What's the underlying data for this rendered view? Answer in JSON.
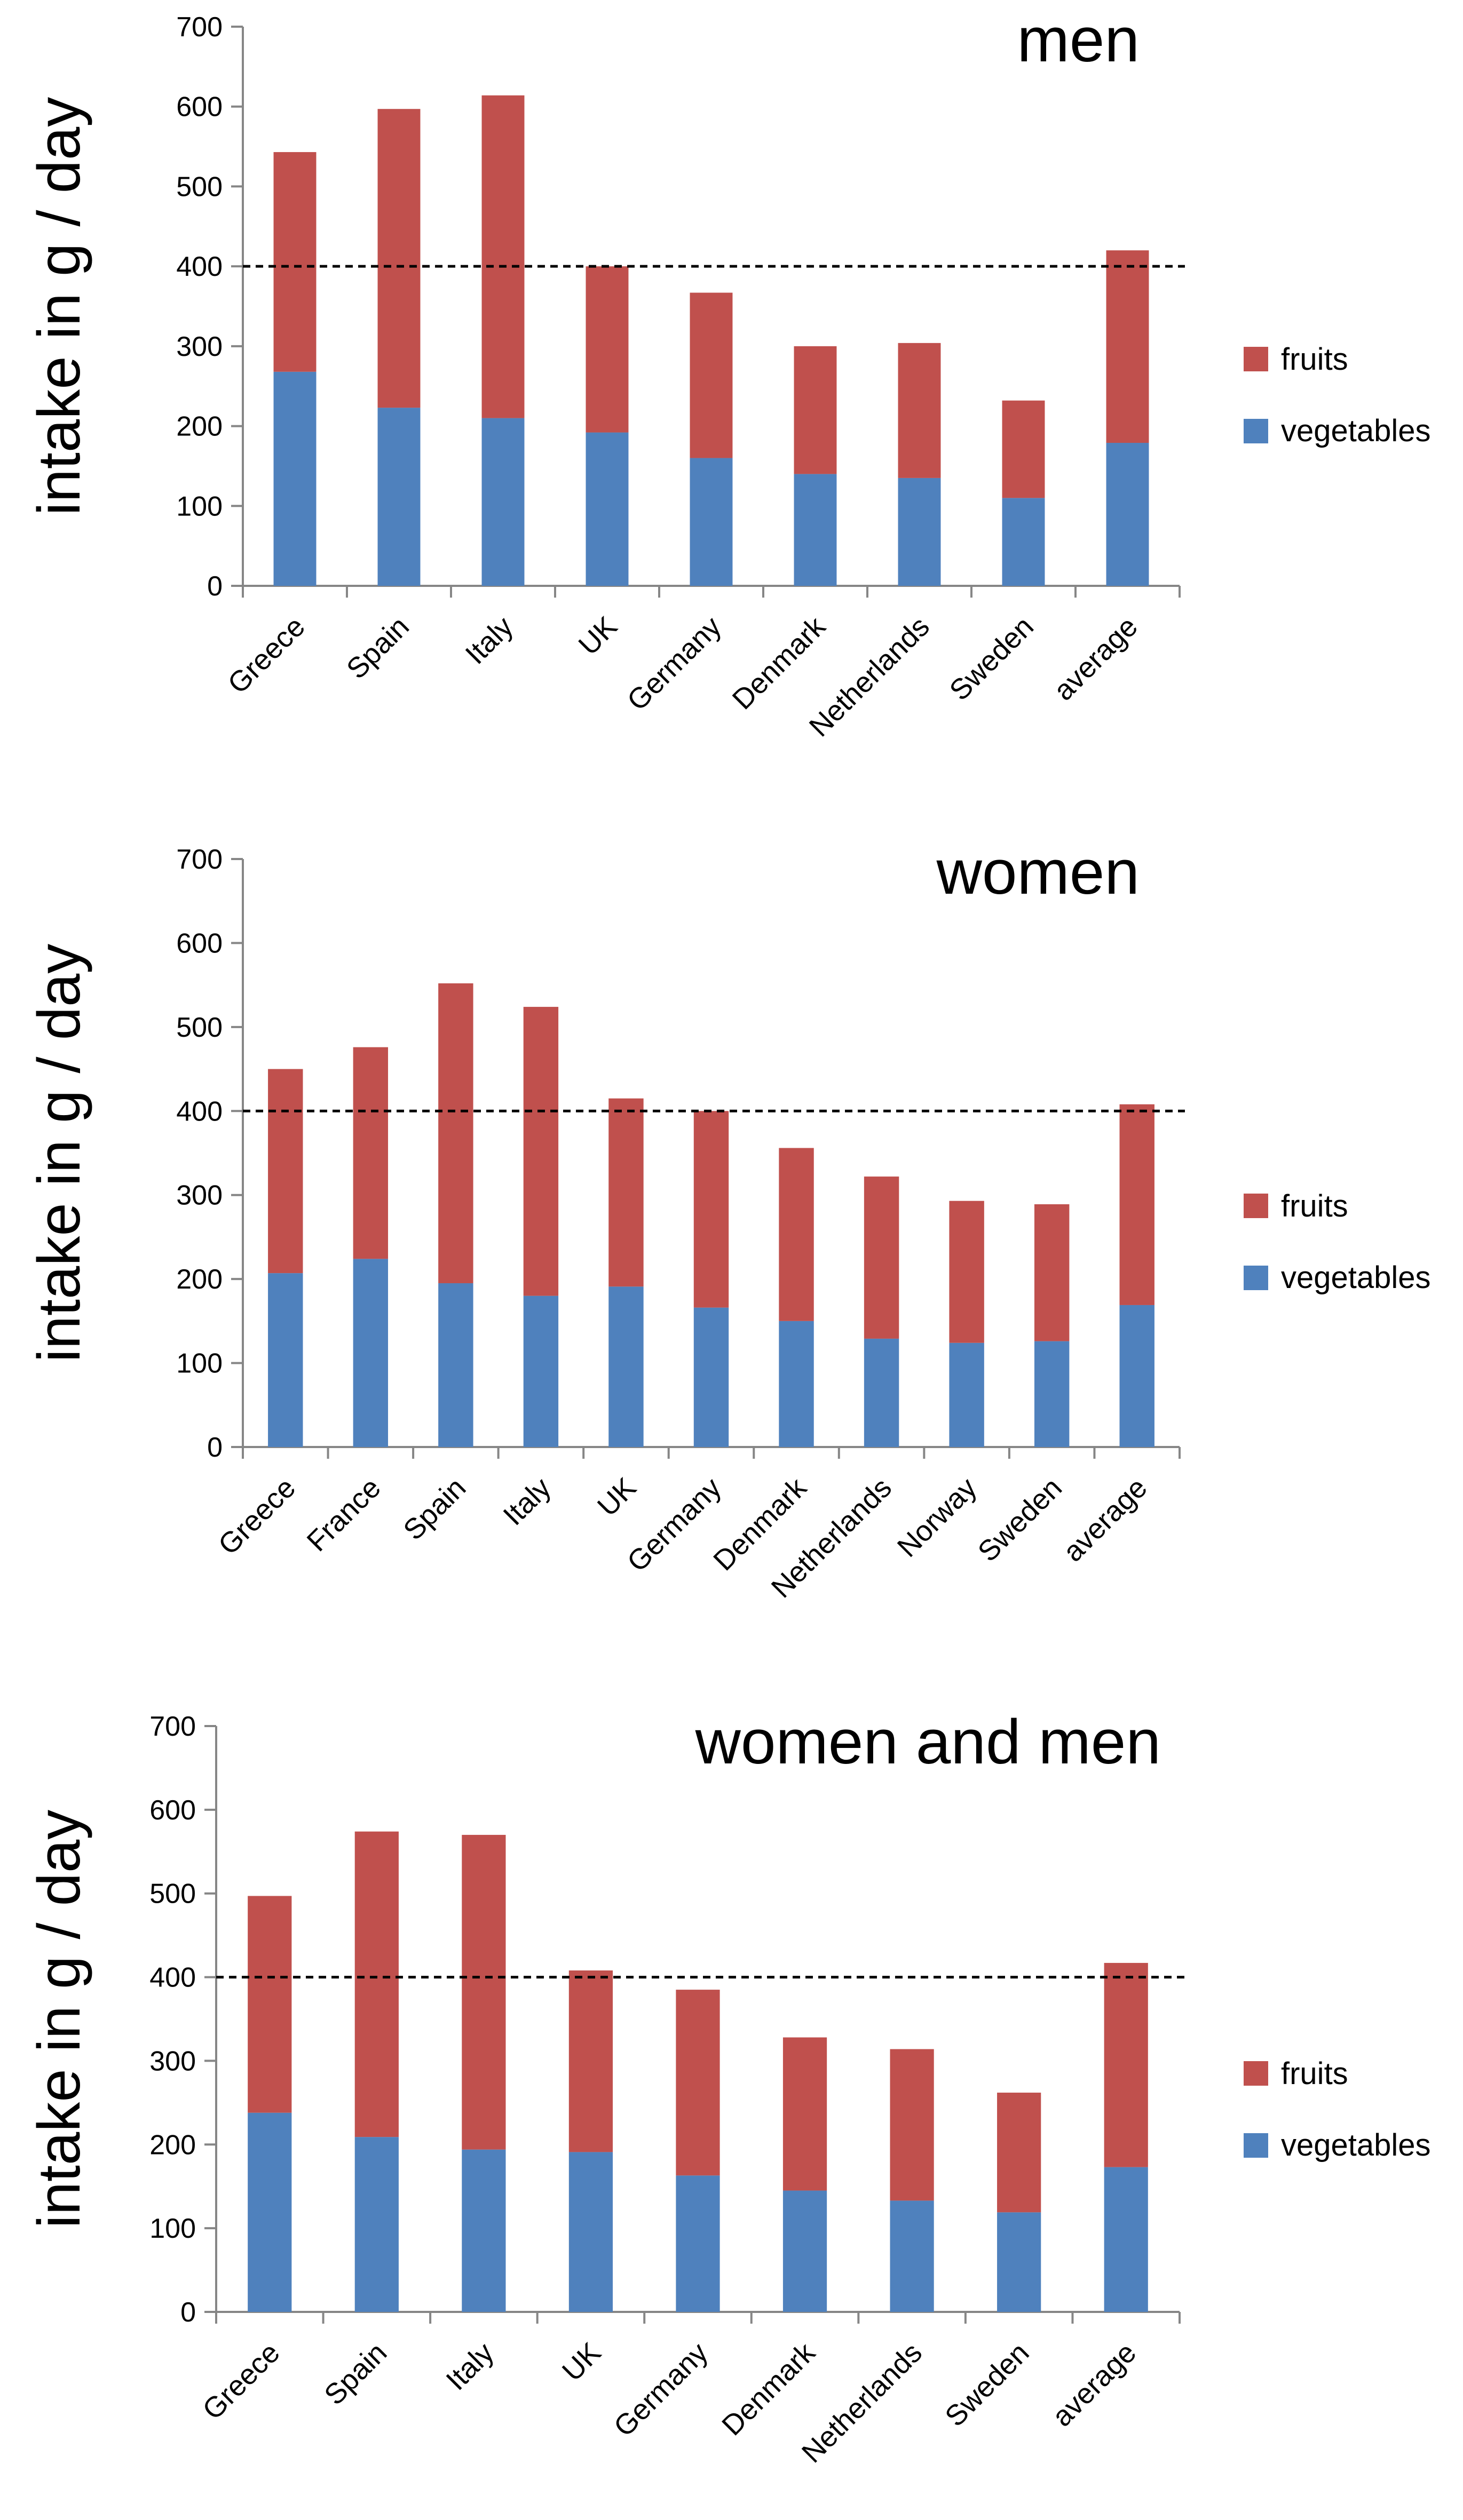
{
  "colors": {
    "fruits": "#c0504d",
    "vegetables": "#4f81bd",
    "axis": "#868686",
    "reference": "#000000"
  },
  "chart_data": [
    {
      "type": "bar",
      "stacked": true,
      "title": "men",
      "ylabel": "intake in g / day",
      "xlabel": "",
      "ylim": [
        0,
        700
      ],
      "yticks": [
        0,
        100,
        200,
        300,
        400,
        500,
        600,
        700
      ],
      "reference_line": 400,
      "legend_position": "right",
      "categories": [
        "Greece",
        "Spain",
        "Italy",
        "UK",
        "Germany",
        "Denmark",
        "Netherlands",
        "Sweden",
        "average"
      ],
      "series": [
        {
          "name": "vegetables",
          "values": [
            268,
            223,
            210,
            192,
            160,
            140,
            135,
            110,
            179
          ]
        },
        {
          "name": "fruits",
          "values": [
            275,
            374,
            404,
            208,
            207,
            160,
            169,
            122,
            241
          ]
        }
      ]
    },
    {
      "type": "bar",
      "stacked": true,
      "title": "women",
      "ylabel": "intake in g / day",
      "xlabel": "",
      "ylim": [
        0,
        700
      ],
      "yticks": [
        0,
        100,
        200,
        300,
        400,
        500,
        600,
        700
      ],
      "reference_line": 400,
      "legend_position": "right",
      "categories": [
        "Greece",
        "France",
        "Spain",
        "Italy",
        "UK",
        "Germany",
        "Denmark",
        "Netherlands",
        "Norway",
        "Sweden",
        "average"
      ],
      "series": [
        {
          "name": "vegetables",
          "values": [
            207,
            224,
            195,
            180,
            191,
            166,
            150,
            129,
            124,
            126,
            169
          ]
        },
        {
          "name": "fruits",
          "values": [
            243,
            252,
            357,
            344,
            224,
            234,
            206,
            193,
            169,
            163,
            239
          ]
        }
      ]
    },
    {
      "type": "bar",
      "stacked": true,
      "title": "women and men",
      "ylabel": "intake in g / day",
      "xlabel": "",
      "ylim": [
        0,
        700
      ],
      "yticks": [
        0,
        100,
        200,
        300,
        400,
        500,
        600,
        700
      ],
      "reference_line": 400,
      "legend_position": "right",
      "categories": [
        "Greece",
        "Spain",
        "Italy",
        "UK",
        "Germany",
        "Denmark",
        "Netherlands",
        "Sweden",
        "average"
      ],
      "series": [
        {
          "name": "vegetables",
          "values": [
            238,
            209,
            194,
            191,
            163,
            145,
            133,
            119,
            173
          ]
        },
        {
          "name": "fruits",
          "values": [
            259,
            365,
            376,
            217,
            222,
            183,
            181,
            143,
            244
          ]
        }
      ]
    }
  ]
}
